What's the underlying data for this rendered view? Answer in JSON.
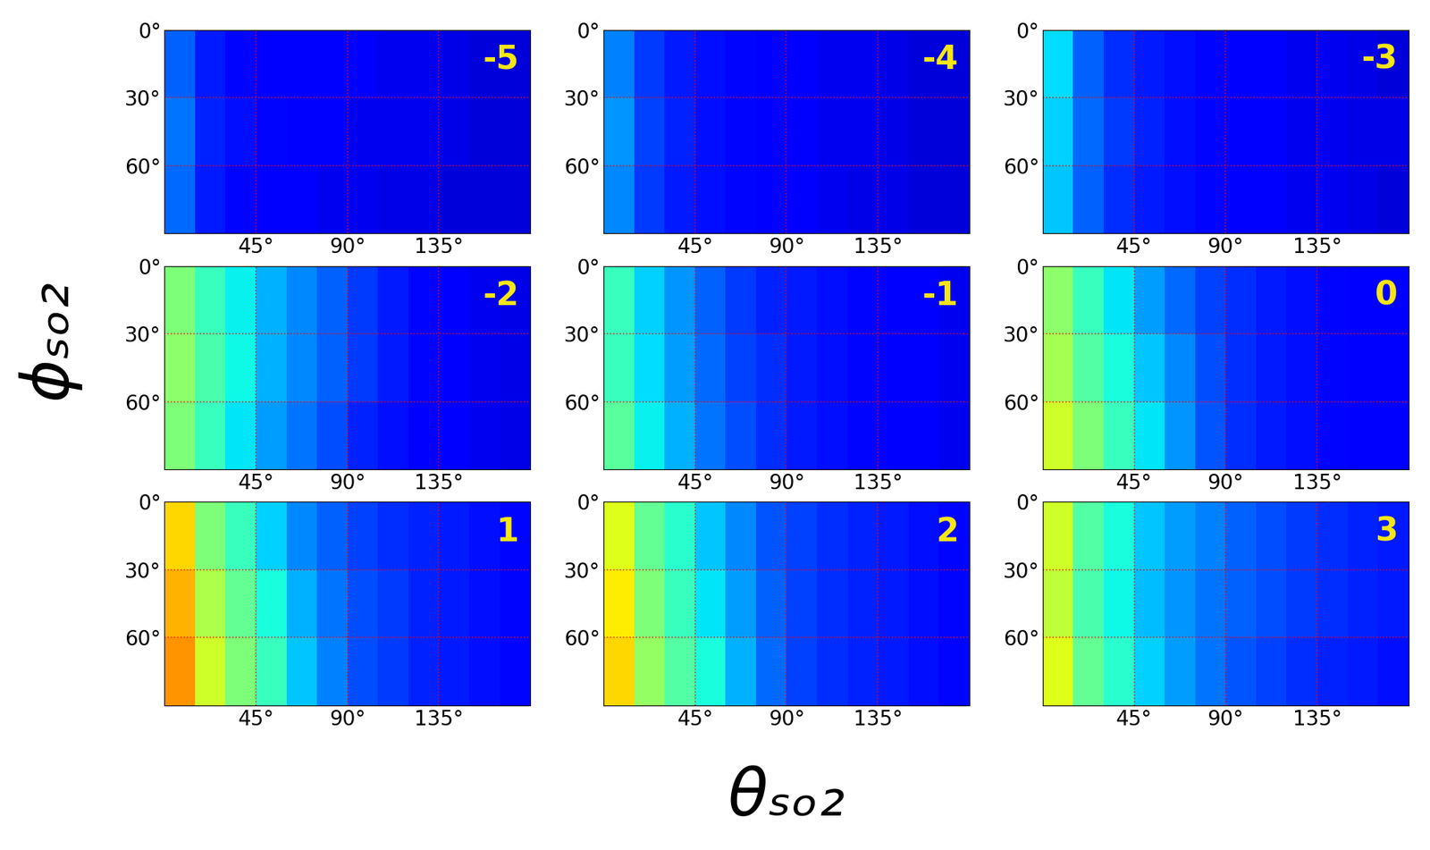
{
  "chart_data": {
    "type": "heatmap_grid",
    "xlabel": "θₛₒ₂",
    "ylabel": "ϕₛₒ₂",
    "xlim": [
      0,
      180
    ],
    "ylim": [
      90,
      0
    ],
    "xticks": [
      {
        "value": 45,
        "label": "45°"
      },
      {
        "value": 90,
        "label": "90°"
      },
      {
        "value": 135,
        "label": "135°"
      }
    ],
    "yticks": [
      {
        "value": 0,
        "label": "0°"
      },
      {
        "value": 30,
        "label": "30°"
      },
      {
        "value": 60,
        "label": "60°"
      }
    ],
    "x_edges": [
      0,
      15,
      30,
      45,
      60,
      75,
      90,
      105,
      120,
      135,
      150,
      165,
      180
    ],
    "y_edges": [
      0,
      30,
      60,
      90
    ],
    "color_range": [
      0,
      1
    ],
    "grid": true,
    "panels": [
      {
        "title": "-5",
        "cells": [
          [
            0.22,
            0.15,
            0.13,
            0.12,
            0.12,
            0.11,
            0.11,
            0.1,
            0.1,
            0.09,
            0.08,
            0.08
          ],
          [
            0.24,
            0.16,
            0.14,
            0.13,
            0.12,
            0.11,
            0.1,
            0.1,
            0.1,
            0.09,
            0.08,
            0.08
          ],
          [
            0.23,
            0.15,
            0.13,
            0.12,
            0.11,
            0.1,
            0.1,
            0.09,
            0.09,
            0.08,
            0.08,
            0.08
          ]
        ]
      },
      {
        "title": "-4",
        "cells": [
          [
            0.25,
            0.18,
            0.15,
            0.14,
            0.13,
            0.12,
            0.11,
            0.1,
            0.1,
            0.09,
            0.08,
            0.08
          ],
          [
            0.27,
            0.19,
            0.16,
            0.14,
            0.13,
            0.12,
            0.11,
            0.1,
            0.1,
            0.09,
            0.08,
            0.08
          ],
          [
            0.26,
            0.18,
            0.15,
            0.14,
            0.13,
            0.12,
            0.11,
            0.1,
            0.09,
            0.09,
            0.08,
            0.08
          ]
        ]
      },
      {
        "title": "-3",
        "cells": [
          [
            0.34,
            0.22,
            0.17,
            0.15,
            0.14,
            0.13,
            0.12,
            0.11,
            0.1,
            0.1,
            0.09,
            0.08
          ],
          [
            0.33,
            0.23,
            0.18,
            0.16,
            0.14,
            0.13,
            0.12,
            0.11,
            0.1,
            0.1,
            0.09,
            0.09
          ],
          [
            0.32,
            0.22,
            0.17,
            0.15,
            0.14,
            0.13,
            0.12,
            0.11,
            0.1,
            0.1,
            0.09,
            0.08
          ]
        ]
      },
      {
        "title": "-2",
        "cells": [
          [
            0.5,
            0.42,
            0.36,
            0.3,
            0.26,
            0.22,
            0.18,
            0.15,
            0.13,
            0.11,
            0.1,
            0.09
          ],
          [
            0.52,
            0.44,
            0.37,
            0.3,
            0.26,
            0.22,
            0.18,
            0.15,
            0.13,
            0.12,
            0.1,
            0.09
          ],
          [
            0.5,
            0.42,
            0.35,
            0.28,
            0.24,
            0.2,
            0.16,
            0.14,
            0.12,
            0.11,
            0.1,
            0.09
          ]
        ]
      },
      {
        "title": "-1",
        "cells": [
          [
            0.42,
            0.33,
            0.27,
            0.22,
            0.18,
            0.16,
            0.15,
            0.14,
            0.13,
            0.12,
            0.11,
            0.1
          ],
          [
            0.42,
            0.34,
            0.28,
            0.23,
            0.19,
            0.17,
            0.15,
            0.14,
            0.13,
            0.12,
            0.11,
            0.1
          ],
          [
            0.46,
            0.36,
            0.3,
            0.24,
            0.2,
            0.17,
            0.15,
            0.14,
            0.13,
            0.12,
            0.11,
            0.1
          ]
        ]
      },
      {
        "title": "0",
        "cells": [
          [
            0.52,
            0.42,
            0.35,
            0.28,
            0.23,
            0.19,
            0.17,
            0.15,
            0.14,
            0.13,
            0.12,
            0.11
          ],
          [
            0.55,
            0.45,
            0.38,
            0.32,
            0.26,
            0.2,
            0.17,
            0.15,
            0.14,
            0.13,
            0.12,
            0.11
          ],
          [
            0.6,
            0.5,
            0.42,
            0.35,
            0.27,
            0.21,
            0.17,
            0.15,
            0.14,
            0.13,
            0.12,
            0.11
          ]
        ]
      },
      {
        "title": "1",
        "cells": [
          [
            0.68,
            0.5,
            0.42,
            0.33,
            0.26,
            0.22,
            0.19,
            0.17,
            0.16,
            0.15,
            0.14,
            0.13
          ],
          [
            0.72,
            0.56,
            0.47,
            0.38,
            0.3,
            0.24,
            0.2,
            0.18,
            0.16,
            0.15,
            0.14,
            0.13
          ],
          [
            0.75,
            0.6,
            0.5,
            0.42,
            0.32,
            0.25,
            0.2,
            0.18,
            0.16,
            0.15,
            0.14,
            0.13
          ]
        ]
      },
      {
        "title": "2",
        "cells": [
          [
            0.62,
            0.47,
            0.4,
            0.32,
            0.26,
            0.21,
            0.19,
            0.17,
            0.16,
            0.15,
            0.14,
            0.13
          ],
          [
            0.66,
            0.5,
            0.42,
            0.35,
            0.28,
            0.22,
            0.19,
            0.17,
            0.16,
            0.15,
            0.14,
            0.13
          ],
          [
            0.68,
            0.53,
            0.45,
            0.38,
            0.3,
            0.23,
            0.19,
            0.17,
            0.16,
            0.15,
            0.14,
            0.13
          ]
        ]
      },
      {
        "title": "3",
        "cells": [
          [
            0.6,
            0.45,
            0.38,
            0.32,
            0.28,
            0.25,
            0.22,
            0.2,
            0.18,
            0.17,
            0.16,
            0.15
          ],
          [
            0.58,
            0.44,
            0.37,
            0.31,
            0.27,
            0.24,
            0.22,
            0.2,
            0.18,
            0.17,
            0.16,
            0.15
          ],
          [
            0.62,
            0.47,
            0.4,
            0.33,
            0.28,
            0.24,
            0.21,
            0.19,
            0.17,
            0.16,
            0.15,
            0.14
          ]
        ]
      }
    ]
  }
}
